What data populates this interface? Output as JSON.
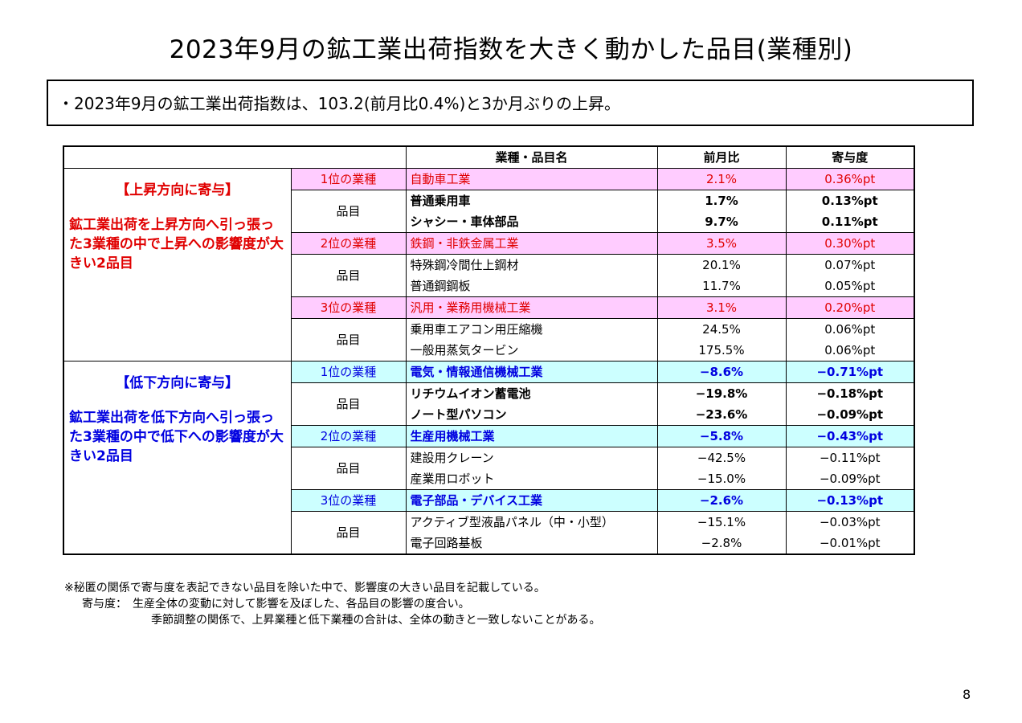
{
  "title": "2023年9月の鉱工業出荷指数を大きく動かした品目(業種別)",
  "summary": "・2023年9月の鉱工業出荷指数は、103.2(前月比0.4%)と3か月ぶりの上昇。",
  "table": {
    "headers": [
      "",
      "業種・品目名",
      "前月比",
      "寄与度"
    ],
    "up": {
      "title": "【上昇方向に寄与】",
      "text": "鉱工業出荷を上昇方向へ引っ張った3業種の中で上昇への影響度が大きい2品目",
      "ranks": [
        {
          "rank": "1位の業種",
          "name": "自動車工業",
          "mom": "2.1%",
          "contrib": "0.36%pt",
          "item_label": "品目",
          "items": [
            {
              "name": "普通乗用車",
              "mom": "1.7%",
              "contrib": "0.13%pt"
            },
            {
              "name": "シャシー・車体部品",
              "mom": "9.7%",
              "contrib": "0.11%pt"
            }
          ]
        },
        {
          "rank": "2位の業種",
          "name": "鉄鋼・非鉄金属工業",
          "mom": "3.5%",
          "contrib": "0.30%pt",
          "item_label": "品目",
          "items": [
            {
              "name": "特殊鋼冷間仕上鋼材",
              "mom": "20.1%",
              "contrib": "0.07%pt"
            },
            {
              "name": "普通鋼鋼板",
              "mom": "11.7%",
              "contrib": "0.05%pt"
            }
          ]
        },
        {
          "rank": "3位の業種",
          "name": "汎用・業務用機械工業",
          "mom": "3.1%",
          "contrib": "0.20%pt",
          "item_label": "品目",
          "items": [
            {
              "name": "乗用車エアコン用圧縮機",
              "mom": "24.5%",
              "contrib": "0.06%pt"
            },
            {
              "name": "一般用蒸気タービン",
              "mom": "175.5%",
              "contrib": "0.06%pt"
            }
          ]
        }
      ]
    },
    "down": {
      "title": "【低下方向に寄与】",
      "text": "鉱工業出荷を低下方向へ引っ張った3業種の中で低下への影響度が大きい2品目",
      "ranks": [
        {
          "rank": "1位の業種",
          "name": "電気・情報通信機械工業",
          "mom": "−8.6%",
          "contrib": "−0.71%pt",
          "item_label": "品目",
          "items": [
            {
              "name": "リチウムイオン蓄電池",
              "mom": "−19.8%",
              "contrib": "−0.18%pt"
            },
            {
              "name": "ノート型パソコン",
              "mom": "−23.6%",
              "contrib": "−0.09%pt"
            }
          ]
        },
        {
          "rank": "2位の業種",
          "name": "生産用機械工業",
          "mom": "−5.8%",
          "contrib": "−0.43%pt",
          "item_label": "品目",
          "items": [
            {
              "name": "建設用クレーン",
              "mom": "−42.5%",
              "contrib": "−0.11%pt"
            },
            {
              "name": "産業用ロボット",
              "mom": "−15.0%",
              "contrib": "−0.09%pt"
            }
          ]
        },
        {
          "rank": "3位の業種",
          "name": "電子部品・デバイス工業",
          "mom": "−2.6%",
          "contrib": "−0.13%pt",
          "item_label": "品目",
          "items": [
            {
              "name": "アクティブ型液晶パネル（中・小型）",
              "mom": "−15.1%",
              "contrib": "−0.03%pt"
            },
            {
              "name": "電子回路基板",
              "mom": "−2.8%",
              "contrib": "−0.01%pt"
            }
          ]
        }
      ]
    }
  },
  "notes": [
    "※秘匿の関係で寄与度を表記できない品目を除いた中で、影響度の大きい品目を記載している。",
    "寄与度：　生産全体の変動に対して影響を及ぼした、各品目の影響の度合い。",
    "季節調整の関係で、上昇業種と低下業種の合計は、全体の動きと一致しないことがある。"
  ],
  "page_number": "8",
  "colors": {
    "up_fill": "#ffccff",
    "up_text": "#e00000",
    "down_fill": "#ccffff",
    "down_text": "#0000e0"
  }
}
